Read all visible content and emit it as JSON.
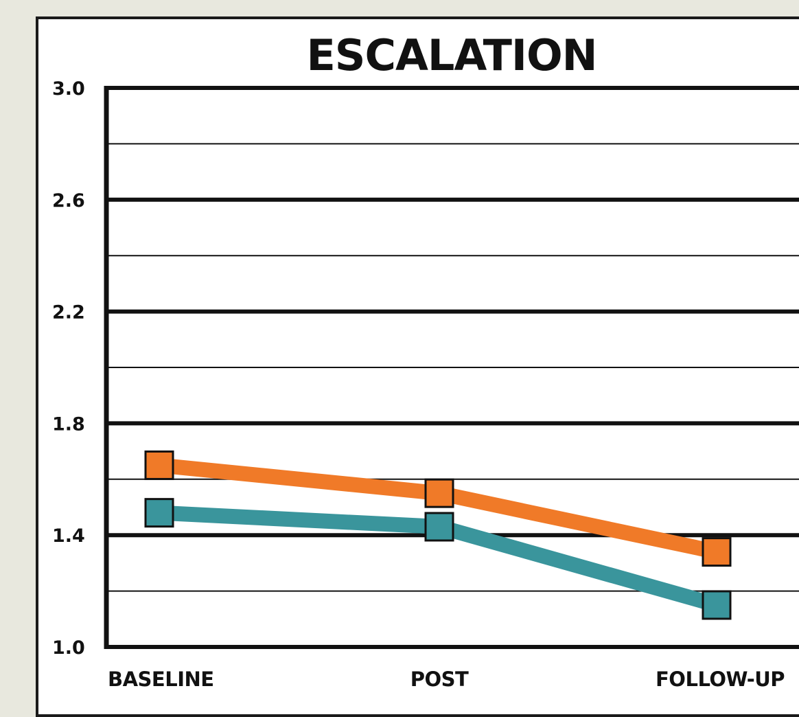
{
  "chart_data": {
    "type": "line",
    "title": "ESCALATION",
    "categories": [
      "BASELINE",
      "POST",
      "FOLLOW-UP"
    ],
    "series": [
      {
        "color": "#f07a28",
        "values": [
          1.65,
          1.55,
          1.34
        ]
      },
      {
        "color": "#3a959c",
        "values": [
          1.48,
          1.43,
          1.15
        ]
      }
    ],
    "ylim": [
      1.0,
      3.0
    ],
    "yticks": [
      "1.0",
      "1.4",
      "1.8",
      "2.2",
      "2.6",
      "3.0"
    ],
    "ytick_values": [
      1.0,
      1.4,
      1.8,
      2.2,
      2.6,
      3.0
    ],
    "minor_gridlines": [
      1.2,
      1.6,
      2.0,
      2.4,
      2.8
    ],
    "grid": true,
    "legend": "none"
  }
}
